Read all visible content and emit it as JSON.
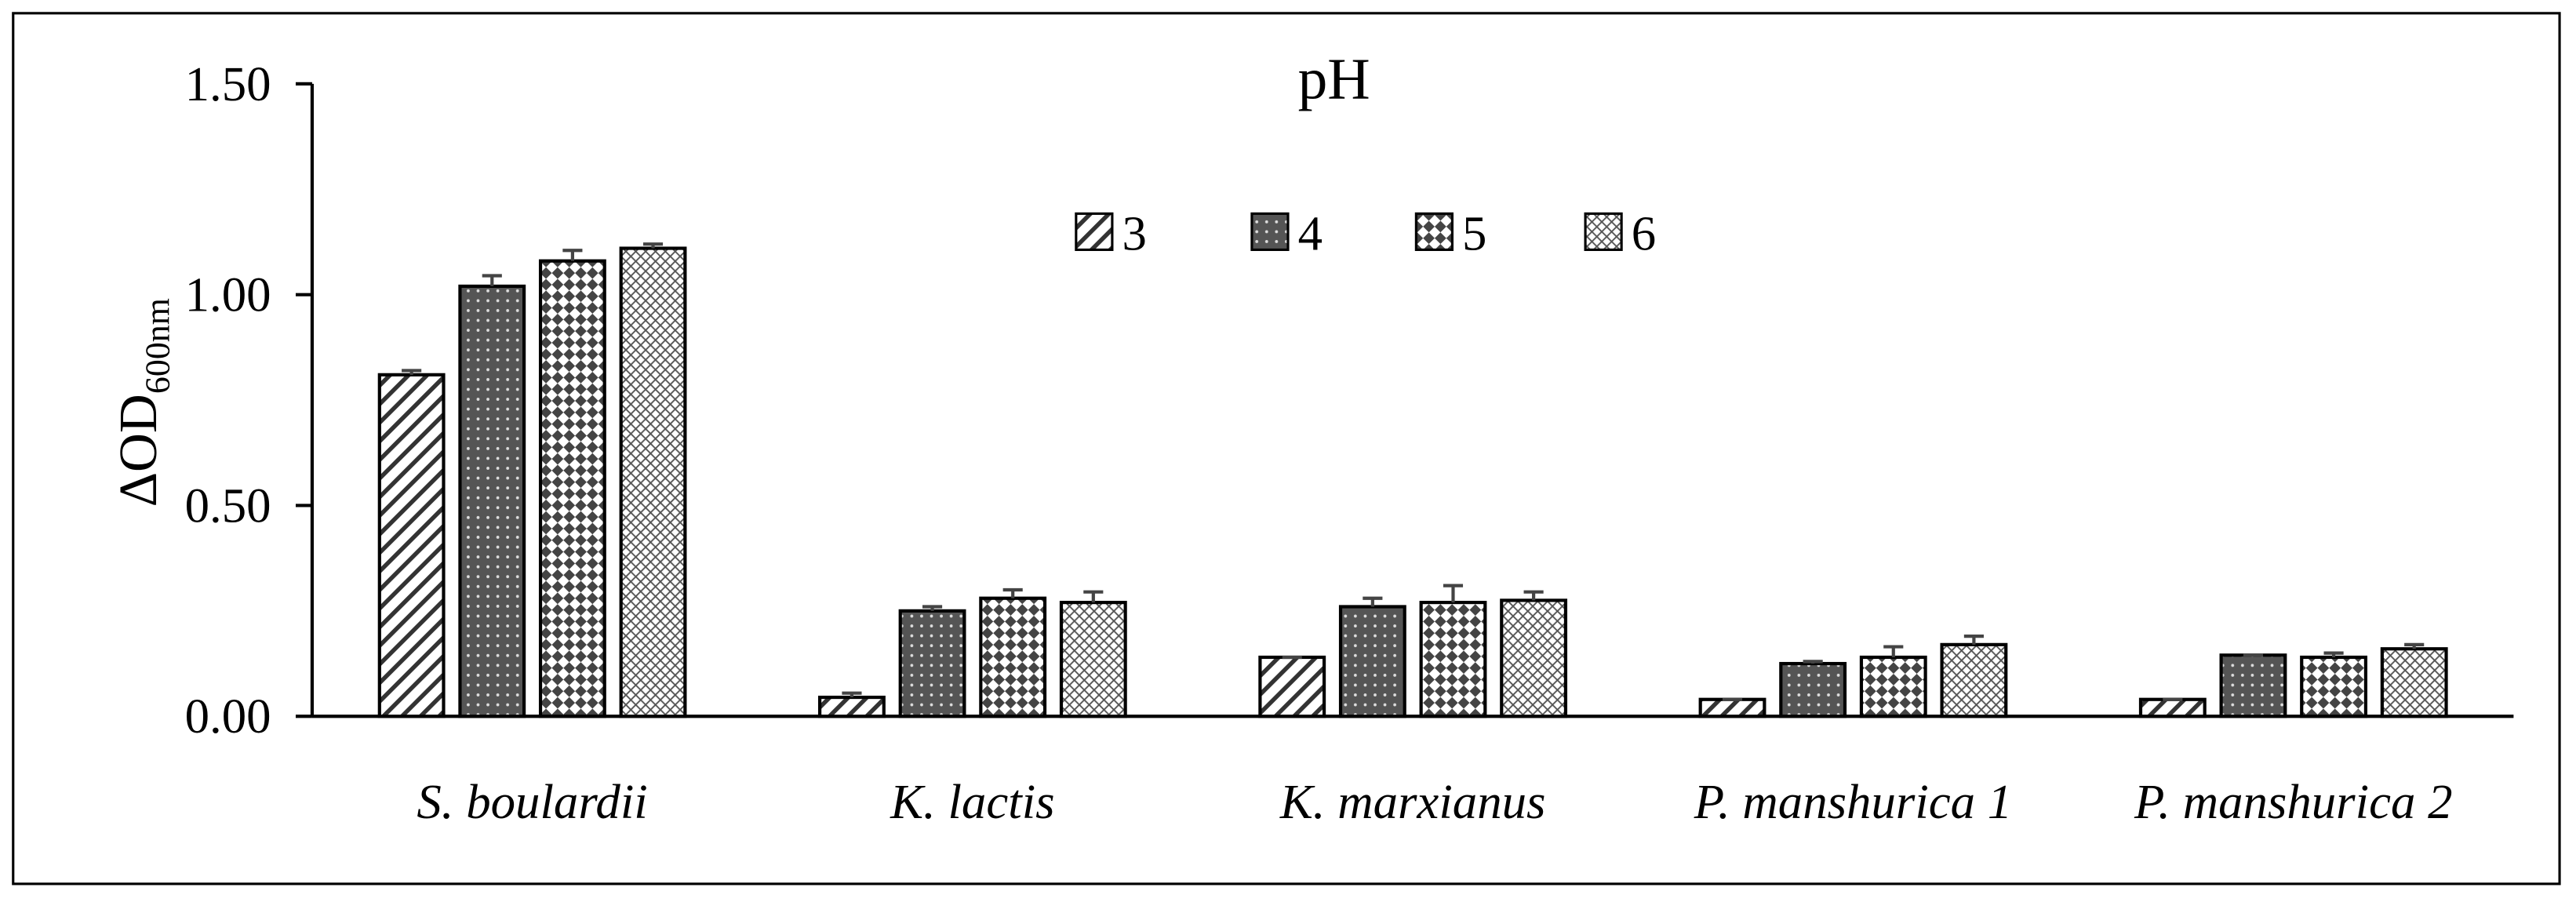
{
  "chart_data": {
    "type": "bar",
    "title": "pH",
    "y_label": "ΔOD",
    "y_label_subscript": "600nm",
    "categories": [
      "S. boulardii",
      "K. lactis",
      "K. marxianus",
      "P. manshurica 1",
      "P. manshurica 2"
    ],
    "series": [
      {
        "name": "3",
        "color": "#ffffff",
        "pattern": "diagonal",
        "values": [
          0.81,
          0.045,
          0.14,
          0.04,
          0.04
        ],
        "errors": [
          0.01,
          0.01,
          0.0,
          0.0,
          0.0
        ]
      },
      {
        "name": "4",
        "color": "#595959",
        "pattern": "dots",
        "values": [
          1.02,
          0.25,
          0.26,
          0.125,
          0.145
        ],
        "errors": [
          0.025,
          0.01,
          0.02,
          0.005,
          0.0
        ]
      },
      {
        "name": "5",
        "color": "#ffffff",
        "pattern": "diamonds",
        "values": [
          1.08,
          0.28,
          0.27,
          0.14,
          0.14
        ],
        "errors": [
          0.025,
          0.02,
          0.04,
          0.025,
          0.01
        ]
      },
      {
        "name": "6",
        "color": "#ffffff",
        "pattern": "crosshatch",
        "values": [
          1.11,
          0.27,
          0.275,
          0.17,
          0.16
        ],
        "errors": [
          0.01,
          0.025,
          0.02,
          0.02,
          0.01
        ]
      }
    ],
    "ylim": [
      0,
      1.5
    ],
    "yticks": [
      {
        "value": 0,
        "label": "0.00"
      },
      {
        "value": 0.5,
        "label": "0.50"
      },
      {
        "value": 1,
        "label": "1.00"
      },
      {
        "value": 1.5,
        "label": "1.50"
      }
    ],
    "grid": false,
    "legend": "top"
  }
}
